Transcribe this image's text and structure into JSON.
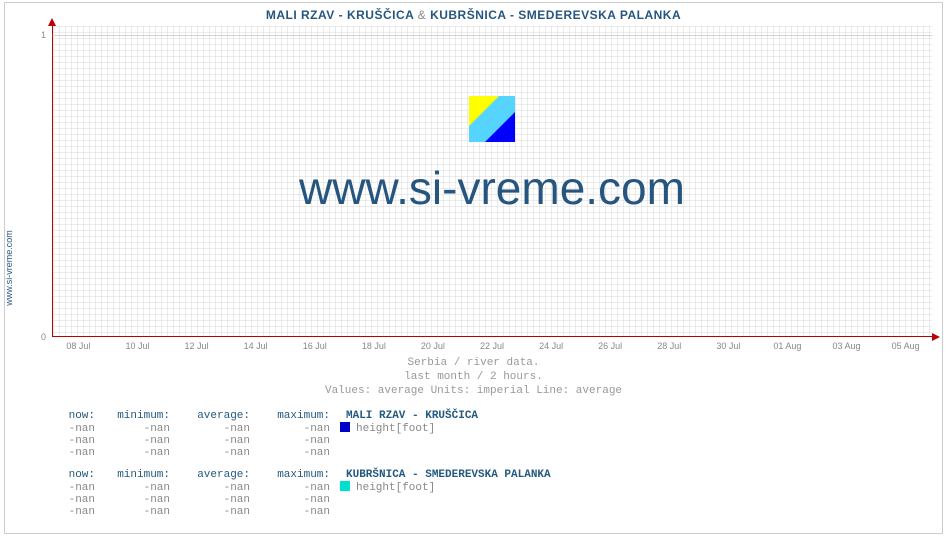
{
  "site": "www.si-vreme.com",
  "title": {
    "series_a": "MALI RZAV -  KRUŠČICA",
    "amp": "&",
    "series_b": "KUBRŠNICA -  SMEDEREVSKA PALANKA"
  },
  "chart": {
    "type": "line",
    "background_color": "#ffffff",
    "grid_color": "#dcdcdc",
    "axis_color": "#bb0000",
    "tick_label_color": "#888888",
    "xlim_labels": [
      "08 Jul",
      "10 Jul",
      "12 Jul",
      "14 Jul",
      "16 Jul",
      "18 Jul",
      "20 Jul",
      "22 Jul",
      "24 Jul",
      "26 Jul",
      "28 Jul",
      "30 Jul",
      "01 Aug",
      "03 Aug",
      "05 Aug"
    ],
    "ylim": [
      0,
      1
    ],
    "yticks": [
      0,
      1
    ],
    "series": []
  },
  "watermark": {
    "text": "www.si-vreme.com",
    "color": "#26567f",
    "fontsize": 46,
    "logo_colors": {
      "yellow": "#ffff00",
      "blue": "#0000ff",
      "cyan": "#00d0ff"
    }
  },
  "caption": {
    "line1": "Serbia / river data.",
    "line2": "last month / 2 hours.",
    "line3": "Values: average  Units: imperial  Line: average"
  },
  "stats": {
    "columns": {
      "now": "now:",
      "min": "minimum:",
      "avg": "average:",
      "max": "maximum:"
    },
    "groups": [
      {
        "name": "MALI RZAV -  KRUŠČICA",
        "swatch": "#0000cc",
        "unit": "height[foot]",
        "rows": [
          {
            "now": "-nan",
            "min": "-nan",
            "avg": "-nan",
            "max": "-nan",
            "show_unit": true
          },
          {
            "now": "-nan",
            "min": "-nan",
            "avg": "-nan",
            "max": "-nan",
            "show_unit": false
          },
          {
            "now": "-nan",
            "min": "-nan",
            "avg": "-nan",
            "max": "-nan",
            "show_unit": false
          }
        ]
      },
      {
        "name": "KUBRŠNICA -  SMEDEREVSKA PALANKA",
        "swatch": "#00e0d0",
        "unit": "height[foot]",
        "rows": [
          {
            "now": "-nan",
            "min": "-nan",
            "avg": "-nan",
            "max": "-nan",
            "show_unit": true
          },
          {
            "now": "-nan",
            "min": "-nan",
            "avg": "-nan",
            "max": "-nan",
            "show_unit": false
          },
          {
            "now": "-nan",
            "min": "-nan",
            "avg": "-nan",
            "max": "-nan",
            "show_unit": false
          }
        ]
      }
    ]
  }
}
